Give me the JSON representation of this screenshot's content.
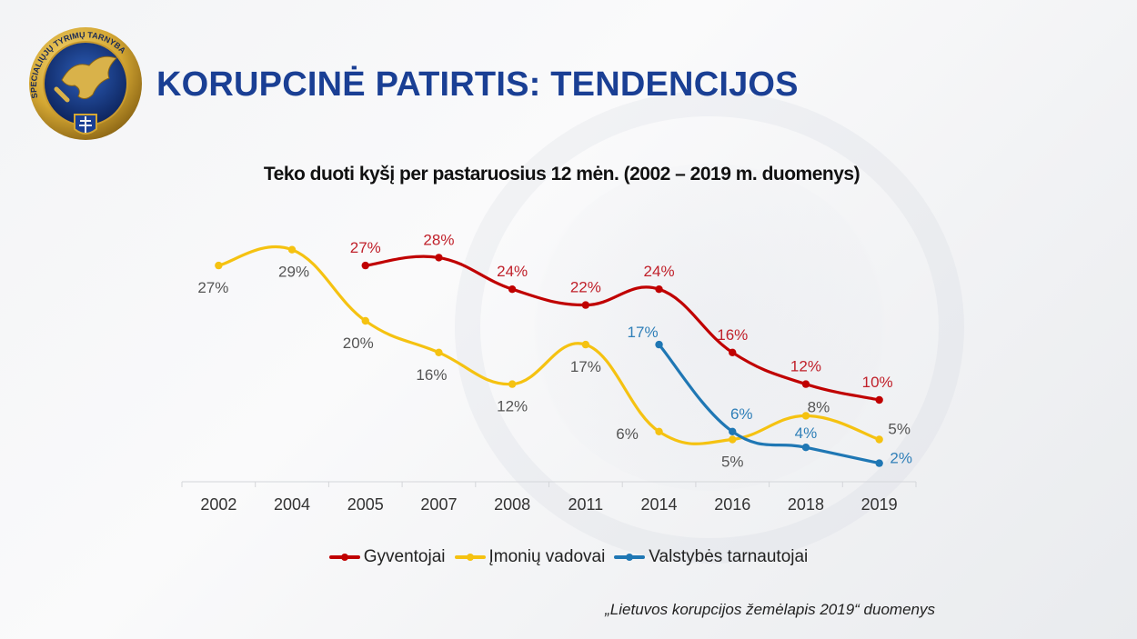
{
  "header": {
    "title": "KORUPCINĖ  PATIRTIS: TENDENCIJOS",
    "logo": {
      "icon": "stt-emblem-icon",
      "text": "SPECIALIŲJŲ TYRIMŲ TARNYBA"
    }
  },
  "source_note": "„Lietuvos korupcijos žemėlapis 2019“ duomenys",
  "colors": {
    "title_blue": "#1a3f94",
    "gyventojai": "#c00000",
    "imoniu_vadovai": "#f5c211",
    "valstybes_tarnautojai": "#1f77b4",
    "label_gray": "#555555"
  },
  "chart_data": {
    "type": "line",
    "title": "Teko duoti kyšį per pastaruosius 12 mėn. (2002 – 2019 m. duomenys)",
    "xlabel": "",
    "ylabel": "",
    "ylim": [
      0,
      30
    ],
    "grid": false,
    "legend_position": "bottom",
    "smooth": true,
    "categories": [
      "2002",
      "2004",
      "2005",
      "2007",
      "2008",
      "2011",
      "2014",
      "2016",
      "2018",
      "2019"
    ],
    "series": [
      {
        "name": "Gyventojai",
        "color": "#c00000",
        "label_color": "#c0202a",
        "label_position": "above",
        "values": [
          null,
          null,
          27,
          28,
          24,
          22,
          24,
          16,
          12,
          10
        ],
        "labels": [
          null,
          null,
          "27%",
          "28%",
          "24%",
          "22%",
          "24%",
          "16%",
          "12%",
          "10%"
        ]
      },
      {
        "name": "Įmonių vadovai",
        "color": "#f5c211",
        "label_color": "#555555",
        "label_position": "below",
        "values": [
          27,
          29,
          20,
          16,
          12,
          17,
          6,
          5,
          8,
          5
        ],
        "labels": [
          "27%",
          "29%",
          "20%",
          "16%",
          "12%",
          "17%",
          "6%",
          "5%",
          "8%",
          "5%"
        ]
      },
      {
        "name": "Valstybės tarnautojai",
        "color": "#1f77b4",
        "label_color": "#2f7fb8",
        "label_position": "above",
        "values": [
          null,
          null,
          null,
          null,
          null,
          null,
          17,
          6,
          4,
          2
        ],
        "labels": [
          null,
          null,
          null,
          null,
          null,
          null,
          "17%",
          "6%",
          "4%",
          "2%"
        ]
      }
    ]
  }
}
